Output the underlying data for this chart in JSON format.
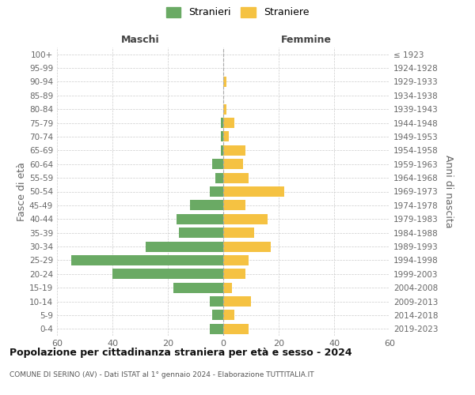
{
  "age_groups": [
    "0-4",
    "5-9",
    "10-14",
    "15-19",
    "20-24",
    "25-29",
    "30-34",
    "35-39",
    "40-44",
    "45-49",
    "50-54",
    "55-59",
    "60-64",
    "65-69",
    "70-74",
    "75-79",
    "80-84",
    "85-89",
    "90-94",
    "95-99",
    "100+"
  ],
  "birth_years": [
    "2019-2023",
    "2014-2018",
    "2009-2013",
    "2004-2008",
    "1999-2003",
    "1994-1998",
    "1989-1993",
    "1984-1988",
    "1979-1983",
    "1974-1978",
    "1969-1973",
    "1964-1968",
    "1959-1963",
    "1954-1958",
    "1949-1953",
    "1944-1948",
    "1939-1943",
    "1934-1938",
    "1929-1933",
    "1924-1928",
    "≤ 1923"
  ],
  "males": [
    5,
    4,
    5,
    18,
    40,
    55,
    28,
    16,
    17,
    12,
    5,
    3,
    4,
    1,
    1,
    1,
    0,
    0,
    0,
    0,
    0
  ],
  "females": [
    9,
    4,
    10,
    3,
    8,
    9,
    17,
    11,
    16,
    8,
    22,
    9,
    7,
    8,
    2,
    4,
    1,
    0,
    1,
    0,
    0
  ],
  "male_color": "#6aaa64",
  "female_color": "#f5c242",
  "grid_color": "#cccccc",
  "center_line_color": "#aaaaaa",
  "title": "Popolazione per cittadinanza straniera per età e sesso - 2024",
  "subtitle": "COMUNE DI SERINO (AV) - Dati ISTAT al 1° gennaio 2024 - Elaborazione TUTTITALIA.IT",
  "left_header": "Maschi",
  "right_header": "Femmine",
  "left_ylabel": "Fasce di età",
  "right_ylabel": "Anni di nascita",
  "legend_male": "Stranieri",
  "legend_female": "Straniere",
  "xlim": 60,
  "background_color": "#ffffff"
}
